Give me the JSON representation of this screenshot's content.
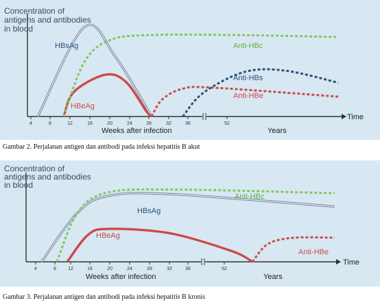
{
  "figures": [
    {
      "caption": "Gambar 2. Perjalanan antigen dan antibodi pada infeksi hepatitis B akut",
      "chart_data": {
        "type": "line",
        "ylabel": [
          "Concentration of",
          "antigens and antibodies",
          "in blood"
        ],
        "xlabel": "Weeks after infection",
        "years_label": "Years",
        "time_label": "Time",
        "x_ticks": [
          "4",
          "8",
          "12",
          "16",
          "20",
          "24",
          "28",
          "32",
          "36",
          "52"
        ],
        "series": [
          {
            "name": "HBsAg",
            "color": "#6f7f9a",
            "style": "double-solid",
            "points": [
              [
                2,
                0
              ],
              [
                11,
                0.9
              ],
              [
                17,
                0.6
              ],
              [
                24,
                0
              ]
            ]
          },
          {
            "name": "HBeAg",
            "color": "#cc4a4a",
            "style": "solid",
            "points": [
              [
                7,
                0
              ],
              [
                9,
                0.25
              ],
              [
                15,
                0.42
              ],
              [
                19,
                0.35
              ],
              [
                23,
                0.05
              ],
              [
                24,
                0
              ]
            ]
          },
          {
            "name": "Anti-HBc",
            "color": "#84c761",
            "style": "dashed",
            "points": [
              [
                7,
                0
              ],
              [
                11,
                0.55
              ],
              [
                16,
                0.77
              ],
              [
                24,
                0.82
              ],
              [
                40,
                0.82
              ],
              [
                60,
                0.8
              ]
            ]
          },
          {
            "name": "Anti-HBe",
            "color": "#cc4a4a",
            "style": "dashed",
            "points": [
              [
                24,
                0
              ],
              [
                26,
                0.17
              ],
              [
                30,
                0.28
              ],
              [
                36,
                0.29
              ],
              [
                60,
                0.2
              ]
            ]
          },
          {
            "name": "Anti-HBs",
            "color": "#2f4d78",
            "style": "dashed",
            "points": [
              [
                30,
                0
              ],
              [
                34,
                0.24
              ],
              [
                42,
                0.45
              ],
              [
                50,
                0.46
              ],
              [
                60,
                0.34
              ]
            ]
          }
        ]
      }
    },
    {
      "caption": "Gambar 3. Perjalanan antigen dan antibodi pada infeksi hepatitis B kronis",
      "chart_data": {
        "type": "line",
        "ylabel": [
          "Concentration of",
          "antigens and antibodies",
          "in blood"
        ],
        "xlabel": "Weeks after infection",
        "years_label": "Years",
        "time_label": "Time",
        "x_ticks": [
          "4",
          "8",
          "12",
          "16",
          "20",
          "24",
          "28",
          "32",
          "36",
          "52"
        ],
        "series": [
          {
            "name": "HBsAg",
            "color": "#6f7f9a",
            "style": "double-solid",
            "points": [
              [
                3,
                0
              ],
              [
                10,
                0.55
              ],
              [
                16,
                0.74
              ],
              [
                28,
                0.76
              ],
              [
                60,
                0.62
              ]
            ]
          },
          {
            "name": "HBeAg",
            "color": "#cc4a4a",
            "style": "solid",
            "points": [
              [
                8,
                0
              ],
              [
                12,
                0.3
              ],
              [
                16,
                0.37
              ],
              [
                28,
                0.32
              ],
              [
                40,
                0.12
              ],
              [
                44,
                0
              ]
            ]
          },
          {
            "name": "Anti-HBc",
            "color": "#84c761",
            "style": "dashed",
            "points": [
              [
                6,
                0
              ],
              [
                10,
                0.55
              ],
              [
                16,
                0.78
              ],
              [
                30,
                0.81
              ],
              [
                60,
                0.77
              ]
            ]
          },
          {
            "name": "Anti-HBe",
            "color": "#cc4a4a",
            "style": "dashed",
            "points": [
              [
                44,
                0
              ],
              [
                47,
                0.2
              ],
              [
                52,
                0.27
              ],
              [
                60,
                0.27
              ]
            ]
          }
        ]
      }
    }
  ]
}
